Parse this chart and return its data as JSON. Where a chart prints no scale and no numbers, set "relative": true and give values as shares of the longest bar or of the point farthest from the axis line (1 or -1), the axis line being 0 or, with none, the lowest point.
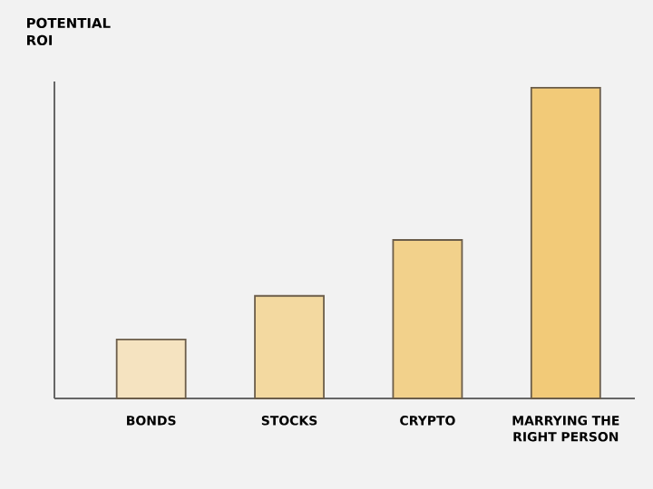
{
  "chart_data": {
    "type": "bar",
    "title": "POTENTIAL ROI",
    "relative": true,
    "categories": [
      "BONDS",
      "STOCKS",
      "CRYPTO",
      "MARRYING THE RIGHT PERSON"
    ],
    "values": [
      0.19,
      0.33,
      0.51,
      1
    ],
    "colors": [
      "#f5e3c0",
      "#f3d9a0",
      "#f2d18b",
      "#f2ca78"
    ]
  }
}
